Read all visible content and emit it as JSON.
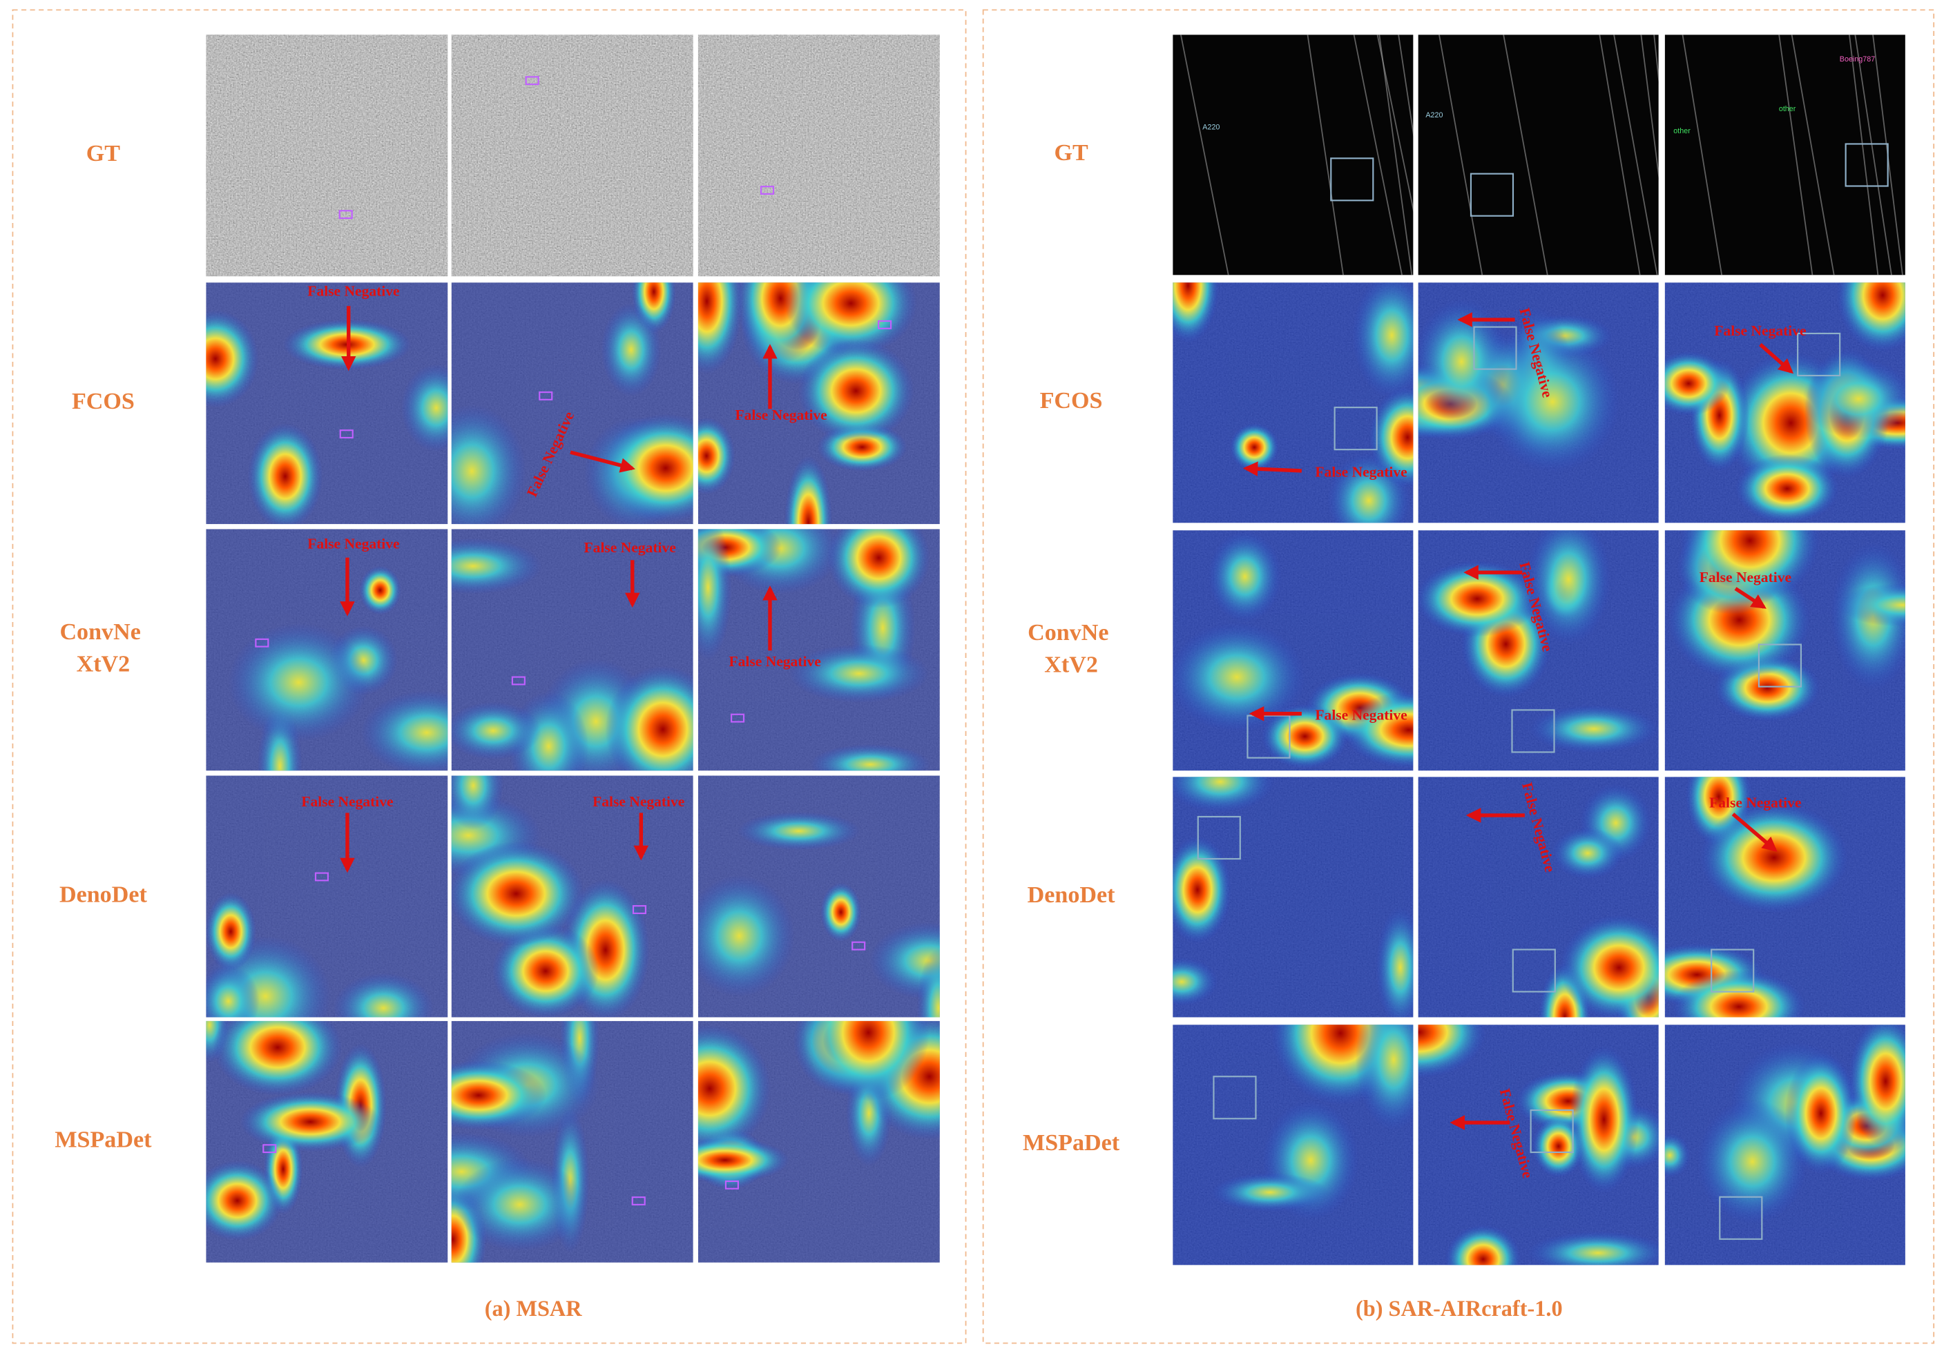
{
  "panels": [
    {
      "caption": "(a) MSAR",
      "row_labels": [
        "GT",
        "FCOS",
        "ConvNe XtV2",
        "DenoDet",
        "MSPaDet"
      ],
      "annotations": [
        "False Negative",
        "False Negative",
        "False Negative",
        "False Negative",
        "False Negative",
        "False Negative",
        "False Negative",
        "False Negative"
      ]
    },
    {
      "caption": "(b) SAR-AIRcraft-1.0",
      "row_labels": [
        "GT",
        "FCOS",
        "ConvNe XtV2",
        "DenoDet",
        "MSPaDet"
      ],
      "annotations": [
        "False Negative",
        "False Negative",
        "False Negative",
        "False Negative",
        "False Negative",
        "False Negative",
        "False Negative",
        "False Negative",
        "False Negative"
      ],
      "box_labels": [
        "A220",
        "A220",
        "other",
        "other",
        "Boeing787"
      ]
    }
  ]
}
